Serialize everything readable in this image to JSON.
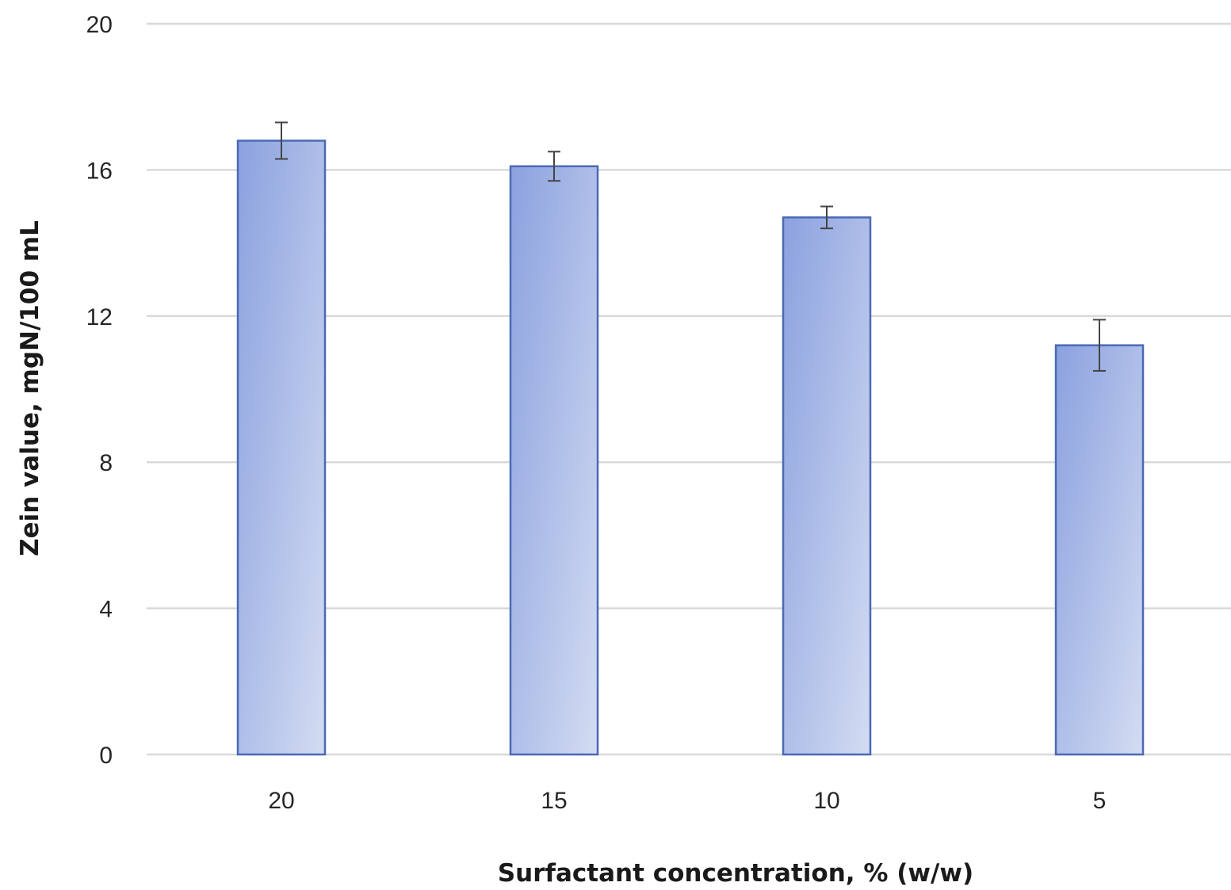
{
  "chart_data": {
    "type": "bar",
    "title": "",
    "xlabel": "Surfactant concentration, % (w/w)",
    "ylabel": "Zein value, mgN/100 mL",
    "categories": [
      "20",
      "15",
      "10",
      "5"
    ],
    "series": [
      {
        "values": [
          16.8,
          16.1,
          14.7,
          11.2
        ],
        "error": [
          0.5,
          0.4,
          0.3,
          0.7
        ],
        "color": "#8ea5e0"
      }
    ],
    "ylim": [
      0,
      20
    ],
    "yticks": [
      0,
      4,
      8,
      12,
      16,
      20
    ],
    "grid": true,
    "legend": "none"
  }
}
